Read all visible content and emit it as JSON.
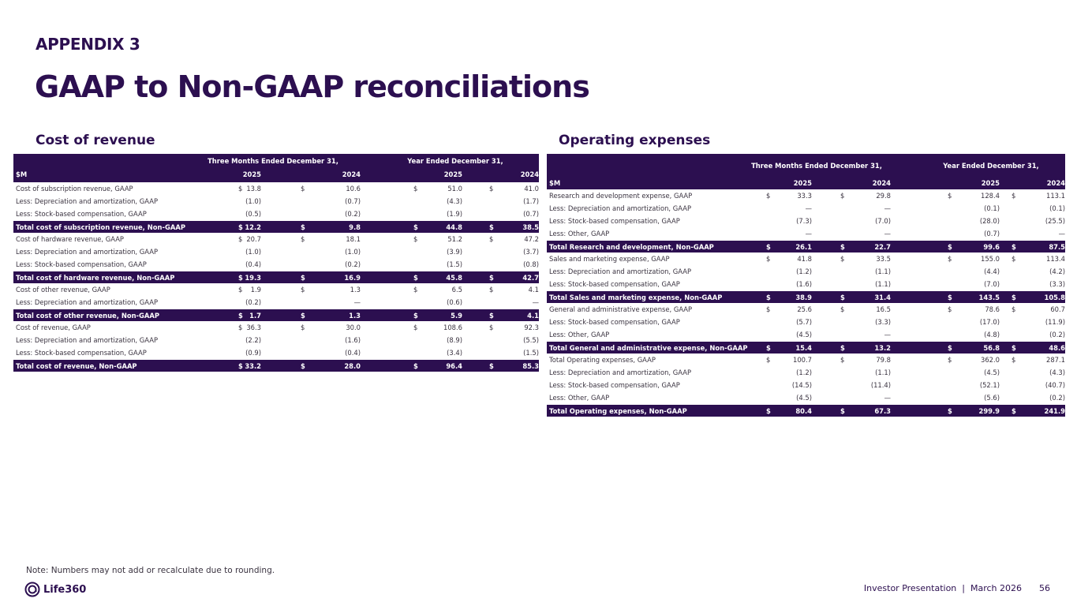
{
  "header": {
    "appendix": "APPENDIX 3",
    "title": "GAAP to Non-GAAP reconciliations"
  },
  "cost_of_revenue": {
    "section_title": "Cost of revenue",
    "period_headers": [
      "Three Months Ended December 31,",
      "Year Ended December 31,"
    ],
    "unit": "$M",
    "years": [
      "2025",
      "2024",
      "2025",
      "2024"
    ],
    "rows": [
      {
        "label": "Cost of subscription revenue, GAAP",
        "dollar": true,
        "values": [
          "13.8",
          "10.6",
          "51.0",
          "41.0"
        ]
      },
      {
        "label": "Less: Depreciation and amortization, GAAP",
        "values": [
          "(1.0)",
          "(0.7)",
          "(4.3)",
          "(1.7)"
        ]
      },
      {
        "label": "Less: Stock-based compensation, GAAP",
        "values": [
          "(0.5)",
          "(0.2)",
          "(1.9)",
          "(0.7)"
        ]
      },
      {
        "label": "Total cost of subscription revenue, Non-GAAP",
        "total": true,
        "dollar": true,
        "values": [
          "12.2",
          "9.8",
          "44.8",
          "38.5"
        ]
      },
      {
        "label": "Cost of hardware revenue, GAAP",
        "dollar": true,
        "values": [
          "20.7",
          "18.1",
          "51.2",
          "47.2"
        ]
      },
      {
        "label": "Less: Depreciation and amortization, GAAP",
        "values": [
          "(1.0)",
          "(1.0)",
          "(3.9)",
          "(3.7)"
        ]
      },
      {
        "label": "Less: Stock-based compensation, GAAP",
        "values": [
          "(0.4)",
          "(0.2)",
          "(1.5)",
          "(0.8)"
        ]
      },
      {
        "label": "Total cost of hardware revenue, Non-GAAP",
        "total": true,
        "dollar": true,
        "values": [
          "19.3",
          "16.9",
          "45.8",
          "42.7"
        ]
      },
      {
        "label": "Cost of other revenue, GAAP",
        "dollar": true,
        "values": [
          "1.9",
          "1.3",
          "6.5",
          "4.1"
        ]
      },
      {
        "label": "Less: Depreciation and amortization, GAAP",
        "values": [
          "(0.2)",
          "—",
          "(0.6)",
          "—"
        ]
      },
      {
        "label": "Total cost of other revenue, Non-GAAP",
        "total": true,
        "dollar": true,
        "values": [
          "1.7",
          "1.3",
          "5.9",
          "4.1"
        ]
      },
      {
        "label": "Cost of revenue, GAAP",
        "dollar": true,
        "values": [
          "36.3",
          "30.0",
          "108.6",
          "92.3"
        ]
      },
      {
        "label": "Less: Depreciation and amortization, GAAP",
        "values": [
          "(2.2)",
          "(1.6)",
          "(8.9)",
          "(5.5)"
        ]
      },
      {
        "label": "Less: Stock-based compensation, GAAP",
        "values": [
          "(0.9)",
          "(0.4)",
          "(3.4)",
          "(1.5)"
        ]
      },
      {
        "label": "Total cost of revenue, Non-GAAP",
        "total": true,
        "dollar": true,
        "values": [
          "33.2",
          "28.0",
          "96.4",
          "85.3"
        ]
      }
    ]
  },
  "operating_expenses": {
    "section_title": "Operating expenses",
    "period_headers": [
      "Three Months Ended December 31,",
      "Year Ended December 31,"
    ],
    "unit": "$M",
    "years": [
      "2025",
      "2024",
      "2025",
      "2024"
    ],
    "rows": [
      {
        "label": "Research and development expense, GAAP",
        "dollar": true,
        "values": [
          "33.3",
          "29.8",
          "128.4",
          "113.1"
        ]
      },
      {
        "label": "Less: Depreciation and amortization, GAAP",
        "values": [
          "—",
          "—",
          "(0.1)",
          "(0.1)"
        ]
      },
      {
        "label": "Less: Stock-based compensation, GAAP",
        "values": [
          "(7.3)",
          "(7.0)",
          "(28.0)",
          "(25.5)"
        ]
      },
      {
        "label": "Less: Other, GAAP",
        "values": [
          "—",
          "—",
          "(0.7)",
          "—"
        ]
      },
      {
        "label": "Total Research and development, Non-GAAP",
        "total": true,
        "dollar": true,
        "values": [
          "26.1",
          "22.7",
          "99.6",
          "87.5"
        ]
      },
      {
        "label": "Sales and marketing expense, GAAP",
        "dollar": true,
        "values": [
          "41.8",
          "33.5",
          "155.0",
          "113.4"
        ]
      },
      {
        "label": "Less: Depreciation and amortization, GAAP",
        "values": [
          "(1.2)",
          "(1.1)",
          "(4.4)",
          "(4.2)"
        ]
      },
      {
        "label": "Less: Stock-based compensation, GAAP",
        "values": [
          "(1.6)",
          "(1.1)",
          "(7.0)",
          "(3.3)"
        ]
      },
      {
        "label": "Total Sales and marketing expense, Non-GAAP",
        "total": true,
        "dollar": true,
        "values": [
          "38.9",
          "31.4",
          "143.5",
          "105.8"
        ]
      },
      {
        "label": "General and administrative expense, GAAP",
        "dollar": true,
        "values": [
          "25.6",
          "16.5",
          "78.6",
          "60.7"
        ]
      },
      {
        "label": "Less: Stock-based compensation, GAAP",
        "values": [
          "(5.7)",
          "(3.3)",
          "(17.0)",
          "(11.9)"
        ]
      },
      {
        "label": "Less: Other, GAAP",
        "values": [
          "(4.5)",
          "—",
          "(4.8)",
          "(0.2)"
        ]
      },
      {
        "label": "Total General and administrative expense, Non-GAAP",
        "total": true,
        "dollar": true,
        "values": [
          "15.4",
          "13.2",
          "56.8",
          "48.6"
        ]
      },
      {
        "label": "Total Operating expenses, GAAP",
        "dollar": true,
        "values": [
          "100.7",
          "79.8",
          "362.0",
          "287.1"
        ]
      },
      {
        "label": "Less: Depreciation and amortization, GAAP",
        "values": [
          "(1.2)",
          "(1.1)",
          "(4.5)",
          "(4.3)"
        ]
      },
      {
        "label": "Less: Stock-based compensation, GAAP",
        "values": [
          "(14.5)",
          "(11.4)",
          "(52.1)",
          "(40.7)"
        ]
      },
      {
        "label": "Less: Other, GAAP",
        "values": [
          "(4.5)",
          "—",
          "(5.6)",
          "(0.2)"
        ]
      },
      {
        "label": "Total Operating expenses, Non-GAAP",
        "total": true,
        "dollar": true,
        "values": [
          "80.4",
          "67.3",
          "299.9",
          "241.9"
        ]
      }
    ]
  },
  "dollar_sign": "$",
  "footer": {
    "note": "Note: Numbers may not add or recalculate due to rounding.",
    "logo": "Life360",
    "presentation": "Investor Presentation  |  March 2026",
    "page": "56"
  }
}
